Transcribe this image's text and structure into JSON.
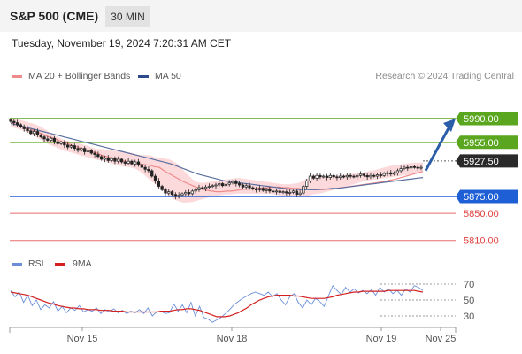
{
  "header": {
    "title": "S&P 500 (CME)",
    "timeframe": "30 MIN"
  },
  "datetime": "Tuesday, November 19, 2024 7:20:31 AM CET",
  "legend": {
    "ma20_label": "MA 20 + Bollinger Bands",
    "ma50_label": "MA 50",
    "credit": "Research © 2024 Trading Central"
  },
  "colors": {
    "candle": "#222222",
    "bollinger_fill": "#fbd3d6",
    "ma20": "#f08a8a",
    "ma50": "#5a6fa0",
    "resistance": "#5aa61f",
    "support_blue": "#1f5fd6",
    "support_red": "#e04040",
    "arrow": "#2c5da8",
    "rsi": "#6a8fd8",
    "rsi_ma": "#d42020"
  },
  "chart_data": [
    {
      "type": "candlestick",
      "title": "S&P 500 (CME)",
      "ylim": [
        5800,
        5997
      ],
      "x_ticks": [
        "Nov 15",
        "Nov 18",
        "Nov 19",
        "Nov 25"
      ],
      "closes": [
        5986,
        5984,
        5981,
        5978,
        5975,
        5972,
        5968,
        5971,
        5966,
        5963,
        5960,
        5958,
        5961,
        5956,
        5953,
        5955,
        5951,
        5948,
        5950,
        5946,
        5943,
        5946,
        5941,
        5943,
        5939,
        5937,
        5934,
        5930,
        5932,
        5928,
        5931,
        5927,
        5930,
        5926,
        5924,
        5927,
        5923,
        5926,
        5922,
        5918,
        5915,
        5913,
        5905,
        5898,
        5890,
        5885,
        5880,
        5882,
        5878,
        5875,
        5877,
        5879,
        5881,
        5879,
        5883,
        5885,
        5888,
        5887,
        5889,
        5890,
        5891,
        5892,
        5894,
        5891,
        5893,
        5895,
        5897,
        5894,
        5892,
        5889,
        5891,
        5888,
        5886,
        5885,
        5887,
        5884,
        5885,
        5883,
        5882,
        5883,
        5881,
        5882,
        5880,
        5881,
        5883,
        5878,
        5880,
        5890,
        5898,
        5905,
        5902,
        5906,
        5904,
        5905,
        5903,
        5906,
        5904,
        5903,
        5905,
        5904,
        5906,
        5905,
        5904,
        5906,
        5908,
        5906,
        5904,
        5906,
        5905,
        5907,
        5906,
        5909,
        5910,
        5908,
        5910,
        5913,
        5916,
        5918,
        5917,
        5919,
        5918,
        5917,
        5918
      ],
      "ma20": [
        5984,
        5982,
        5980,
        5977,
        5975,
        5972,
        5969,
        5966,
        5963,
        5961,
        5958,
        5955,
        5953,
        5950,
        5948,
        5945,
        5943,
        5941,
        5939,
        5936,
        5934,
        5932,
        5930,
        5928,
        5927,
        5925,
        5924,
        5923,
        5922,
        5921,
        5919,
        5918,
        5913,
        5909,
        5905,
        5901,
        5897,
        5894,
        5891,
        5888,
        5886,
        5884,
        5883,
        5882,
        5882,
        5883,
        5883,
        5884,
        5885,
        5886,
        5886,
        5887,
        5887,
        5888,
        5888,
        5889,
        5889,
        5888,
        5888,
        5887,
        5887,
        5886,
        5886,
        5885,
        5885,
        5885,
        5886,
        5886,
        5887,
        5888,
        5889,
        5890,
        5891,
        5892,
        5893,
        5894,
        5895,
        5896,
        5897,
        5899,
        5900,
        5902,
        5904,
        5906,
        5908,
        5910,
        5912
      ],
      "ma50": [
        5983,
        5981,
        5979,
        5977,
        5975,
        5973,
        5971,
        5969,
        5967,
        5965,
        5963,
        5961,
        5959,
        5957,
        5955,
        5953,
        5951,
        5949,
        5947,
        5945,
        5943,
        5941,
        5939,
        5937,
        5935,
        5933,
        5931,
        5929,
        5927,
        5925,
        5923,
        5920,
        5917,
        5914,
        5911,
        5908,
        5906,
        5904,
        5902,
        5900,
        5898,
        5897,
        5896,
        5895,
        5894,
        5893,
        5892,
        5891,
        5890,
        5889,
        5888,
        5887,
        5886,
        5886,
        5885,
        5885,
        5885,
        5885,
        5886,
        5886,
        5887,
        5887,
        5888,
        5889,
        5890,
        5891,
        5892,
        5893,
        5894,
        5895,
        5896,
        5897,
        5898,
        5899,
        5900,
        5901,
        5902,
        5903
      ],
      "bollinger_upper": [
        5992,
        5990,
        5988,
        5986,
        5984,
        5982,
        5979,
        5975,
        5970,
        5966,
        5962,
        5959,
        5957,
        5955,
        5954,
        5952,
        5950,
        5947,
        5945,
        5945,
        5944,
        5943,
        5942,
        5941,
        5940,
        5940,
        5938,
        5936,
        5936,
        5936,
        5933,
        5932,
        5931,
        5930,
        5927,
        5922,
        5914,
        5907,
        5900,
        5896,
        5895,
        5896,
        5897,
        5898,
        5899,
        5900,
        5901,
        5902,
        5902,
        5901,
        5900,
        5899,
        5898,
        5897,
        5896,
        5895,
        5894,
        5893,
        5893,
        5894,
        5895,
        5898,
        5902,
        5906,
        5907,
        5906,
        5905,
        5905,
        5906,
        5906,
        5907,
        5908,
        5909,
        5910,
        5911,
        5913,
        5914,
        5916,
        5918,
        5920,
        5921,
        5922,
        5923,
        5924,
        5925,
        5925,
        5925
      ],
      "bollinger_lower": [
        5978,
        5976,
        5974,
        5971,
        5968,
        5964,
        5960,
        5956,
        5952,
        5949,
        5946,
        5943,
        5941,
        5939,
        5937,
        5935,
        5933,
        5931,
        5929,
        5928,
        5926,
        5924,
        5922,
        5920,
        5919,
        5918,
        5916,
        5912,
        5906,
        5900,
        5894,
        5888,
        5882,
        5876,
        5871,
        5868,
        5866,
        5866,
        5867,
        5869,
        5871,
        5873,
        5875,
        5876,
        5877,
        5878,
        5878,
        5879,
        5879,
        5879,
        5879,
        5879,
        5879,
        5879,
        5879,
        5878,
        5877,
        5876,
        5875,
        5874,
        5874,
        5874,
        5876,
        5878,
        5879,
        5880,
        5882,
        5884,
        5886,
        5888,
        5890,
        5892,
        5894,
        5896,
        5898,
        5899,
        5900,
        5901,
        5902,
        5903,
        5904,
        5905,
        5906,
        5907,
        5908,
        5909,
        5910
      ],
      "levels": [
        {
          "label": "5990.00",
          "value": 5990,
          "kind": "resistance"
        },
        {
          "label": "5955.00",
          "value": 5955,
          "kind": "resistance"
        },
        {
          "label": "5927.50",
          "value": 5927.5,
          "kind": "current"
        },
        {
          "label": "5875.00",
          "value": 5875,
          "kind": "pivot"
        },
        {
          "label": "5850.00",
          "value": 5850,
          "kind": "support"
        },
        {
          "label": "5810.00",
          "value": 5810,
          "kind": "support"
        }
      ],
      "arrow": {
        "from": 5917,
        "to": 5990,
        "direction": "up"
      }
    },
    {
      "type": "line",
      "title": "",
      "ylim": [
        20,
        75
      ],
      "y_ticks": [
        "70",
        "50",
        "30"
      ],
      "series": [
        {
          "name": "RSI",
          "values": [
            62,
            54,
            60,
            47,
            56,
            43,
            50,
            38,
            44,
            40,
            48,
            36,
            42,
            34,
            40,
            37,
            43,
            35,
            38,
            36,
            40,
            33,
            38,
            35,
            39,
            34,
            37,
            33,
            36,
            34,
            38,
            33,
            40,
            30,
            35,
            36,
            33,
            34,
            45,
            36,
            44,
            34,
            47,
            30,
            42,
            28,
            26,
            22,
            25,
            28,
            33,
            38,
            44,
            48,
            52,
            55,
            58,
            60,
            58,
            56,
            60,
            54,
            58,
            50,
            44,
            54,
            58,
            47,
            40,
            50,
            44,
            52,
            48,
            42,
            55,
            68,
            62,
            57,
            66,
            60,
            64,
            59,
            62,
            58,
            63,
            56,
            66,
            60,
            64,
            58,
            62,
            56,
            64,
            60,
            68,
            66,
            62
          ]
        },
        {
          "name": "9MA",
          "values": [
            60,
            59,
            58,
            57,
            56,
            54,
            52,
            50,
            48,
            46,
            45,
            43,
            42,
            41,
            40,
            40,
            39,
            39,
            38,
            38,
            38,
            37,
            37,
            37,
            36,
            36,
            36,
            35,
            35,
            35,
            35,
            35,
            35,
            35,
            35,
            36,
            36,
            36,
            37,
            38,
            38,
            39,
            39,
            38,
            37,
            35,
            33,
            31,
            29,
            29,
            29,
            30,
            32,
            34,
            37,
            40,
            44,
            47,
            50,
            52,
            54,
            55,
            56,
            56,
            56,
            56,
            55,
            55,
            54,
            53,
            52,
            52,
            52,
            52,
            53,
            54,
            56,
            57,
            58,
            59,
            60,
            60,
            61,
            61,
            61,
            61,
            61,
            61,
            62,
            62,
            62,
            62,
            62,
            62,
            62,
            61,
            60
          ]
        }
      ]
    }
  ]
}
